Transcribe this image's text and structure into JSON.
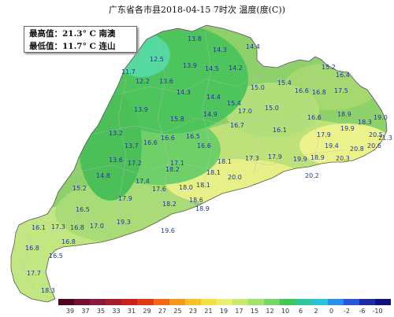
{
  "title": "广东省各市县2018-04-15 7时次 温度(度(C))",
  "extremes": {
    "max_label": "最高值：",
    "max_value": "21.3° C",
    "max_station": "南澳",
    "min_label": "最低值：",
    "min_value": "11.7° C",
    "min_station": "连山"
  },
  "station_values": [
    "13.8",
    "14.3",
    "14.4",
    "12.5",
    "13.9",
    "14.5",
    "11.7",
    "12.2",
    "13.6",
    "14.2",
    "15.0",
    "15.4",
    "15.2",
    "16.4",
    "14.3",
    "14.4",
    "15.4",
    "15.0",
    "16.6",
    "16.8",
    "17.5",
    "13.9",
    "15.8",
    "14.9",
    "17.0",
    "16.6",
    "18.9",
    "19.0",
    "16.7",
    "16.1",
    "18.3",
    "13.2",
    "16.6",
    "16.5",
    "17.9",
    "19.9",
    "20.5",
    "13.7",
    "16.6",
    "16.6",
    "19.4",
    "21.3",
    "20.6",
    "13.6",
    "17.2",
    "17.1",
    "18.1",
    "17.3",
    "17.9",
    "19.9",
    "18.9",
    "20.3",
    "20.8",
    "14.8",
    "17.4",
    "18.2",
    "18.1",
    "20.0",
    "20.2",
    "15.2",
    "17.6",
    "18.0",
    "18.1",
    "17.9",
    "18.2",
    "18.6",
    "16.5",
    "18.9",
    "19.3",
    "16.1",
    "17.3",
    "16.8",
    "17.0",
    "19.6",
    "16.8",
    "16.8",
    "16.5",
    "17.7",
    "18.3"
  ],
  "legend": {
    "ticks": [
      "39",
      "37",
      "35",
      "33",
      "31",
      "29",
      "27",
      "25",
      "23",
      "21",
      "19",
      "17",
      "15",
      "12",
      "10",
      "6",
      "2",
      "0",
      "-2",
      "-6",
      "-10"
    ],
    "colors": [
      "#4a0a1e",
      "#6e1030",
      "#8b1a3a",
      "#a61c2c",
      "#c82020",
      "#e03a1a",
      "#f06a18",
      "#f7951c",
      "#fbbf2a",
      "#f3e045",
      "#e8f070",
      "#c7eb72",
      "#a3e270",
      "#76d66a",
      "#3fc95a",
      "#2ec5a0",
      "#27c3d6",
      "#2a8fe6",
      "#2658d9",
      "#1a2ea8",
      "#10127a"
    ]
  }
}
